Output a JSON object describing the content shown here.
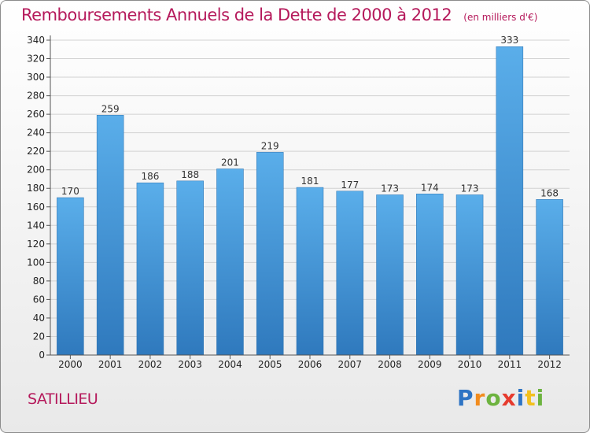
{
  "chart_data": {
    "type": "bar",
    "title": "Remboursements Annuels de la Dette de 2000 à 2012",
    "unit_note": "(en milliers d'€)",
    "categories": [
      "2000",
      "2001",
      "2002",
      "2003",
      "2004",
      "2005",
      "2006",
      "2007",
      "2008",
      "2009",
      "2010",
      "2011",
      "2012"
    ],
    "values": [
      170,
      259,
      186,
      188,
      201,
      219,
      181,
      177,
      173,
      174,
      173,
      333,
      168
    ],
    "ylim": [
      0,
      340
    ],
    "ytick_step": 20,
    "xlabel": "",
    "ylabel": "",
    "grid": true,
    "bar_color": "#4a9ad9"
  },
  "commune": "SATILLIEU",
  "logo": {
    "text": "Proxiti"
  }
}
